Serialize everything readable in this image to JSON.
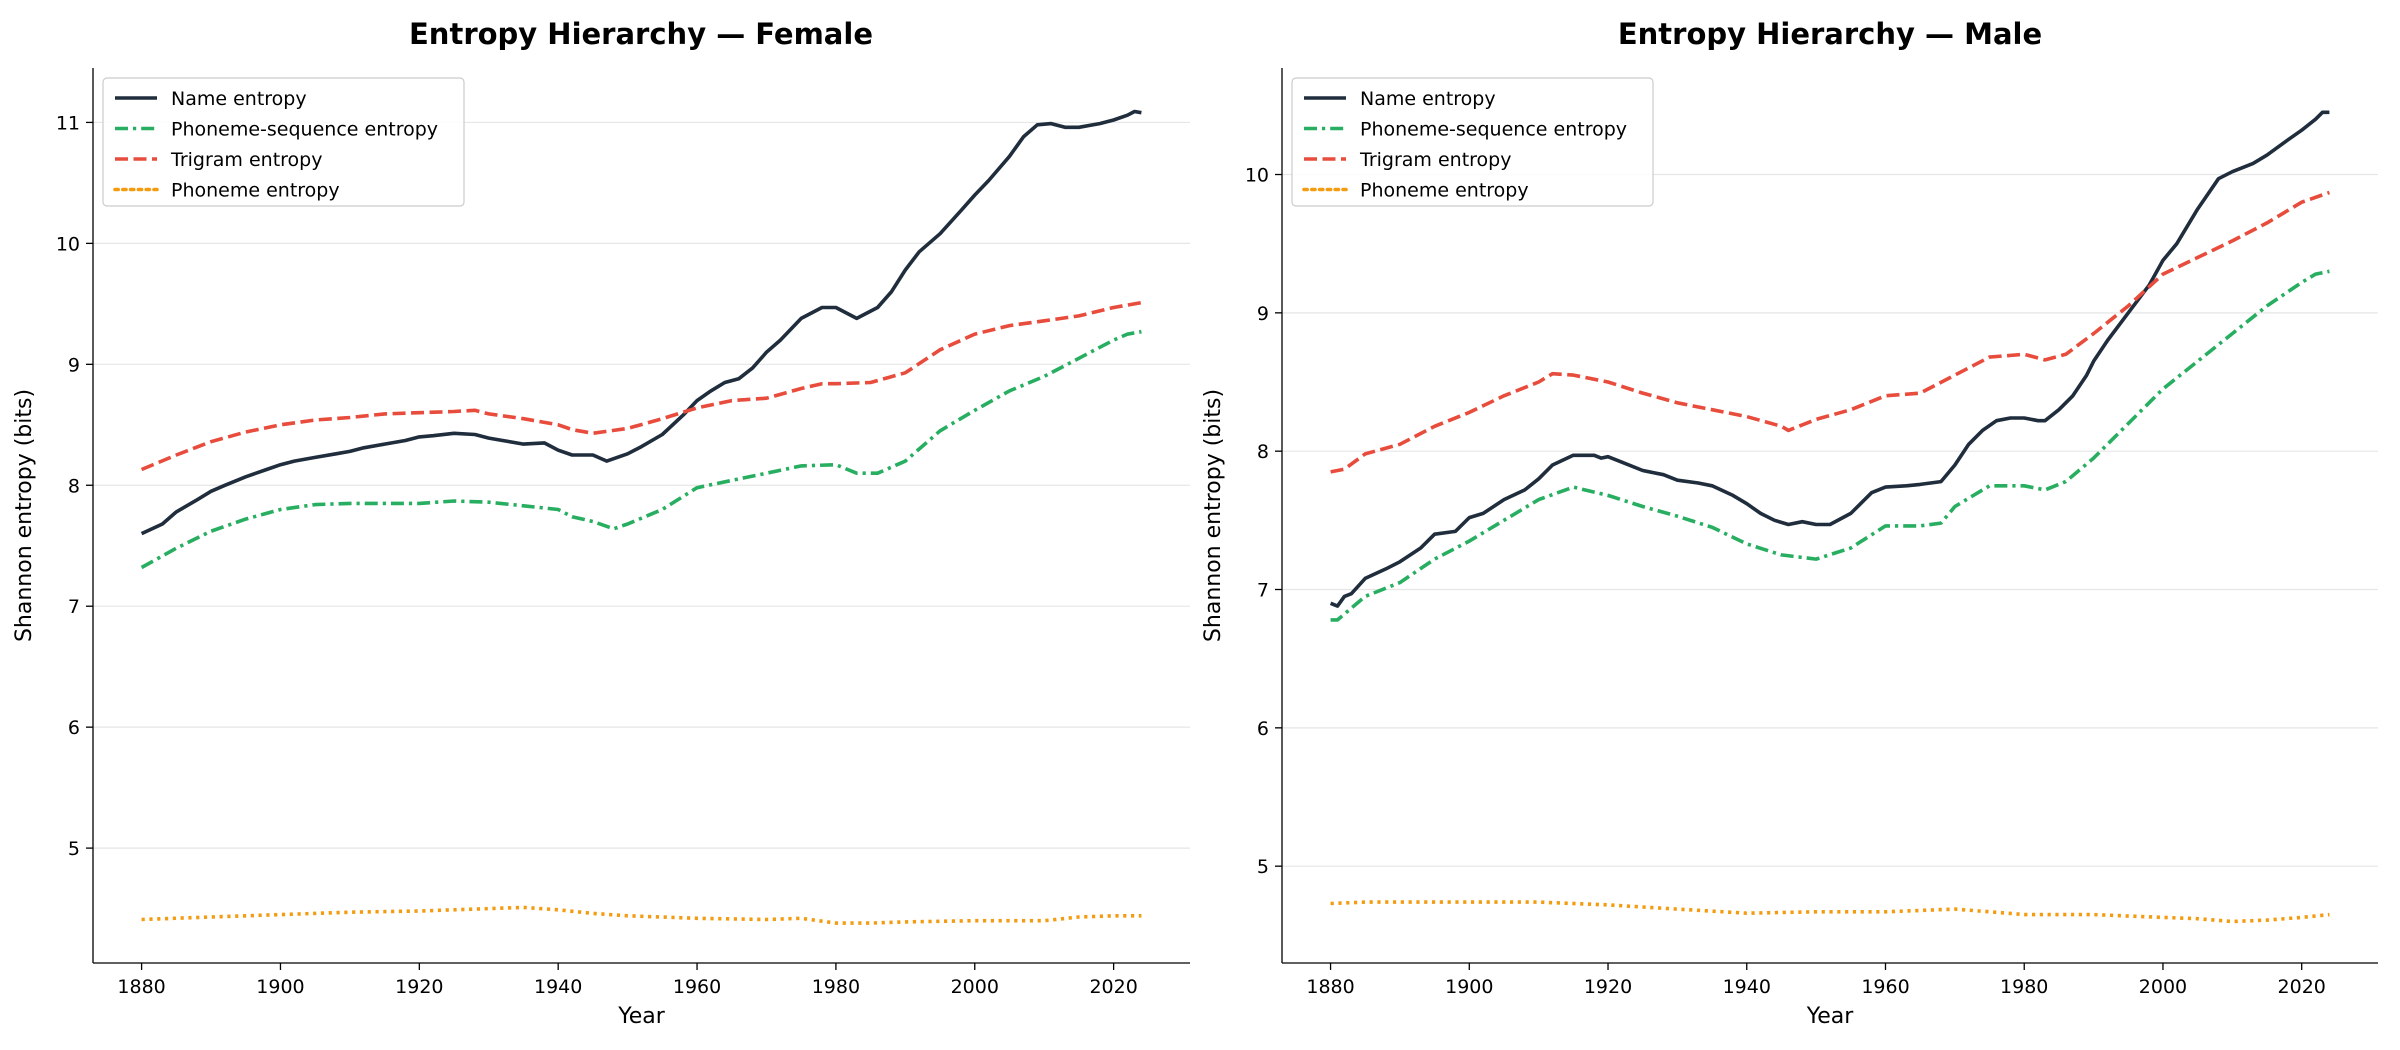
{
  "chart_data": [
    {
      "type": "line",
      "title": "Entropy Hierarchy — Female",
      "xlabel": "Year",
      "ylabel": "Shannon entropy (bits)",
      "xlim": [
        1873,
        2031
      ],
      "ylim": [
        4.05,
        11.45
      ],
      "xticks": [
        1880,
        1900,
        1920,
        1940,
        1960,
        1980,
        2000,
        2020
      ],
      "yticks": [
        5,
        6,
        7,
        8,
        9,
        10,
        11
      ],
      "grid": "horizontal",
      "legend": "top-left",
      "series": [
        {
          "name": "Name entropy",
          "color": "#1f2d3d",
          "style": "solid",
          "x": [
            1880,
            1883,
            1885,
            1888,
            1890,
            1892,
            1895,
            1898,
            1900,
            1902,
            1905,
            1908,
            1910,
            1912,
            1915,
            1918,
            1920,
            1922,
            1925,
            1928,
            1930,
            1932,
            1935,
            1938,
            1940,
            1942,
            1945,
            1947,
            1950,
            1952,
            1955,
            1958,
            1960,
            1962,
            1964,
            1966,
            1968,
            1970,
            1972,
            1975,
            1978,
            1980,
            1983,
            1986,
            1988,
            1990,
            1992,
            1995,
            1998,
            2000,
            2002,
            2005,
            2007,
            2009,
            2011,
            2013,
            2015,
            2018,
            2020,
            2022,
            2023,
            2024
          ],
          "y": [
            7.6,
            7.68,
            7.78,
            7.88,
            7.95,
            8.0,
            8.07,
            8.13,
            8.17,
            8.2,
            8.23,
            8.26,
            8.28,
            8.31,
            8.34,
            8.37,
            8.4,
            8.41,
            8.43,
            8.42,
            8.39,
            8.37,
            8.34,
            8.35,
            8.29,
            8.25,
            8.25,
            8.2,
            8.26,
            8.32,
            8.42,
            8.58,
            8.7,
            8.78,
            8.85,
            8.88,
            8.97,
            9.1,
            9.2,
            9.38,
            9.47,
            9.47,
            9.38,
            9.47,
            9.6,
            9.78,
            9.93,
            10.08,
            10.27,
            10.4,
            10.52,
            10.72,
            10.88,
            10.98,
            10.99,
            10.96,
            10.96,
            10.99,
            11.02,
            11.06,
            11.09,
            11.08
          ]
        },
        {
          "name": "Phoneme-sequence entropy",
          "color": "#27ae60",
          "style": "dashdot",
          "x": [
            1880,
            1885,
            1890,
            1895,
            1900,
            1905,
            1910,
            1915,
            1920,
            1925,
            1930,
            1935,
            1940,
            1942,
            1945,
            1948,
            1950,
            1955,
            1960,
            1965,
            1970,
            1975,
            1980,
            1983,
            1986,
            1990,
            1995,
            2000,
            2005,
            2010,
            2015,
            2020,
            2022,
            2024
          ],
          "y": [
            7.32,
            7.48,
            7.62,
            7.72,
            7.8,
            7.84,
            7.85,
            7.85,
            7.85,
            7.87,
            7.86,
            7.83,
            7.8,
            7.74,
            7.7,
            7.64,
            7.68,
            7.8,
            7.98,
            8.04,
            8.1,
            8.16,
            8.17,
            8.1,
            8.1,
            8.2,
            8.45,
            8.62,
            8.78,
            8.9,
            9.05,
            9.2,
            9.25,
            9.27
          ]
        },
        {
          "name": "Trigram entropy",
          "color": "#e74c3c",
          "style": "dashed",
          "x": [
            1880,
            1885,
            1890,
            1895,
            1900,
            1905,
            1910,
            1915,
            1920,
            1925,
            1928,
            1930,
            1935,
            1940,
            1942,
            1945,
            1950,
            1955,
            1960,
            1965,
            1970,
            1975,
            1978,
            1980,
            1985,
            1990,
            1995,
            2000,
            2005,
            2010,
            2015,
            2020,
            2024
          ],
          "y": [
            8.13,
            8.25,
            8.36,
            8.44,
            8.5,
            8.54,
            8.56,
            8.59,
            8.6,
            8.61,
            8.62,
            8.59,
            8.55,
            8.5,
            8.46,
            8.43,
            8.47,
            8.55,
            8.64,
            8.7,
            8.72,
            8.8,
            8.84,
            8.84,
            8.85,
            8.93,
            9.12,
            9.25,
            9.32,
            9.36,
            9.4,
            9.47,
            9.51
          ]
        },
        {
          "name": "Phoneme entropy",
          "color": "#f39c12",
          "style": "dotted",
          "x": [
            1880,
            1890,
            1900,
            1910,
            1920,
            1930,
            1935,
            1940,
            1945,
            1950,
            1960,
            1970,
            1975,
            1980,
            1985,
            1990,
            2000,
            2010,
            2015,
            2020,
            2024
          ],
          "y": [
            4.41,
            4.43,
            4.45,
            4.47,
            4.48,
            4.5,
            4.51,
            4.49,
            4.46,
            4.44,
            4.42,
            4.41,
            4.42,
            4.38,
            4.38,
            4.39,
            4.4,
            4.4,
            4.43,
            4.44,
            4.44
          ]
        }
      ]
    },
    {
      "type": "line",
      "title": "Entropy Hierarchy — Male",
      "xlabel": "Year",
      "ylabel": "Shannon entropy (bits)",
      "xlim": [
        1873,
        2031
      ],
      "ylim": [
        4.3,
        10.77
      ],
      "xticks": [
        1880,
        1900,
        1920,
        1940,
        1960,
        1980,
        2000,
        2020
      ],
      "yticks": [
        5,
        6,
        7,
        8,
        9,
        10
      ],
      "grid": "horizontal",
      "legend": "top-left",
      "series": [
        {
          "name": "Name entropy",
          "color": "#1f2d3d",
          "style": "solid",
          "x": [
            1880,
            1881,
            1882,
            1883,
            1885,
            1888,
            1890,
            1893,
            1895,
            1898,
            1900,
            1902,
            1905,
            1908,
            1910,
            1912,
            1915,
            1918,
            1919,
            1920,
            1922,
            1925,
            1928,
            1930,
            1933,
            1935,
            1938,
            1940,
            1942,
            1944,
            1946,
            1948,
            1950,
            1952,
            1955,
            1958,
            1960,
            1963,
            1965,
            1968,
            1970,
            1972,
            1974,
            1976,
            1978,
            1980,
            1982,
            1983,
            1985,
            1987,
            1989,
            1990,
            1992,
            1995,
            1998,
            2000,
            2002,
            2005,
            2008,
            2010,
            2013,
            2015,
            2018,
            2020,
            2022,
            2023,
            2024
          ],
          "y": [
            6.9,
            6.88,
            6.95,
            6.97,
            7.08,
            7.15,
            7.2,
            7.3,
            7.4,
            7.42,
            7.52,
            7.55,
            7.65,
            7.72,
            7.8,
            7.9,
            7.97,
            7.97,
            7.95,
            7.96,
            7.92,
            7.86,
            7.83,
            7.79,
            7.77,
            7.75,
            7.68,
            7.62,
            7.55,
            7.5,
            7.47,
            7.49,
            7.47,
            7.47,
            7.55,
            7.7,
            7.74,
            7.75,
            7.76,
            7.78,
            7.9,
            8.05,
            8.15,
            8.22,
            8.24,
            8.24,
            8.22,
            8.22,
            8.3,
            8.4,
            8.55,
            8.65,
            8.8,
            9.0,
            9.2,
            9.38,
            9.5,
            9.75,
            9.97,
            10.02,
            10.08,
            10.14,
            10.25,
            10.32,
            10.4,
            10.45,
            10.45
          ]
        },
        {
          "name": "Phoneme-sequence entropy",
          "color": "#27ae60",
          "style": "dashdot",
          "x": [
            1880,
            1881,
            1885,
            1890,
            1895,
            1900,
            1905,
            1910,
            1915,
            1920,
            1925,
            1930,
            1935,
            1940,
            1945,
            1950,
            1955,
            1960,
            1965,
            1968,
            1970,
            1975,
            1980,
            1983,
            1986,
            1990,
            1995,
            2000,
            2005,
            2010,
            2015,
            2020,
            2022,
            2024
          ],
          "y": [
            6.78,
            6.78,
            6.95,
            7.05,
            7.22,
            7.35,
            7.5,
            7.65,
            7.74,
            7.68,
            7.6,
            7.53,
            7.45,
            7.33,
            7.25,
            7.22,
            7.3,
            7.46,
            7.46,
            7.48,
            7.6,
            7.75,
            7.75,
            7.72,
            7.78,
            7.95,
            8.2,
            8.45,
            8.65,
            8.85,
            9.05,
            9.22,
            9.28,
            9.3
          ]
        },
        {
          "name": "Trigram entropy",
          "color": "#e74c3c",
          "style": "dashed",
          "x": [
            1880,
            1882,
            1885,
            1890,
            1895,
            1900,
            1905,
            1910,
            1912,
            1915,
            1920,
            1925,
            1930,
            1935,
            1940,
            1945,
            1946,
            1950,
            1955,
            1960,
            1965,
            1970,
            1975,
            1980,
            1983,
            1986,
            1990,
            1995,
            2000,
            2005,
            2010,
            2015,
            2020,
            2024
          ],
          "y": [
            7.85,
            7.87,
            7.98,
            8.05,
            8.18,
            8.28,
            8.4,
            8.5,
            8.56,
            8.55,
            8.5,
            8.42,
            8.35,
            8.3,
            8.25,
            8.18,
            8.15,
            8.23,
            8.3,
            8.4,
            8.42,
            8.55,
            8.68,
            8.7,
            8.66,
            8.7,
            8.85,
            9.05,
            9.28,
            9.4,
            9.52,
            9.65,
            9.8,
            9.87
          ]
        },
        {
          "name": "Phoneme entropy",
          "color": "#f39c12",
          "style": "dotted",
          "x": [
            1880,
            1885,
            1890,
            1900,
            1910,
            1920,
            1930,
            1940,
            1950,
            1960,
            1970,
            1975,
            1980,
            1990,
            2000,
            2005,
            2010,
            2015,
            2020,
            2024
          ],
          "y": [
            4.73,
            4.74,
            4.74,
            4.74,
            4.74,
            4.72,
            4.69,
            4.66,
            4.67,
            4.67,
            4.69,
            4.67,
            4.65,
            4.65,
            4.63,
            4.62,
            4.6,
            4.61,
            4.63,
            4.65
          ]
        }
      ]
    }
  ]
}
